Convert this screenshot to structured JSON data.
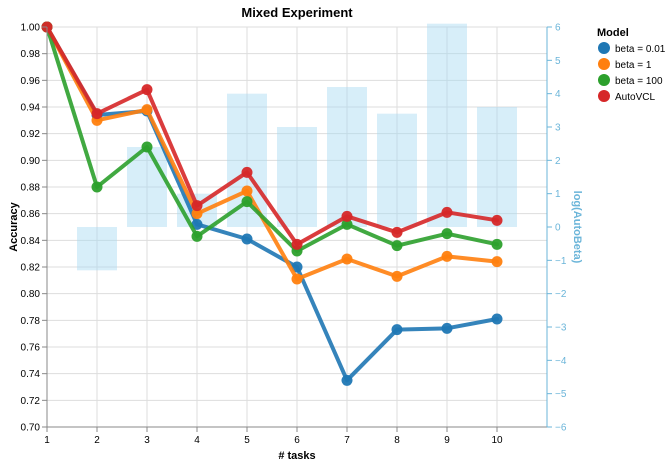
{
  "chart_data": {
    "type": "line",
    "title": "Mixed Experiment",
    "xlabel": "# tasks",
    "ylabel": "Accuracy",
    "y2label": "log(AutoBeta)",
    "x": [
      1,
      2,
      3,
      4,
      5,
      6,
      7,
      8,
      9,
      10
    ],
    "ylim": [
      0.7,
      1.0
    ],
    "y_ticks": [
      "0.70",
      "0.72",
      "0.74",
      "0.76",
      "0.78",
      "0.80",
      "0.82",
      "0.84",
      "0.86",
      "0.88",
      "0.90",
      "0.92",
      "0.94",
      "0.96",
      "0.98",
      "1.00"
    ],
    "y2lim": [
      -6,
      6
    ],
    "y2_ticks": [
      "−6",
      "−5",
      "−4",
      "−3",
      "−2",
      "−1",
      "0",
      "1",
      "2",
      "3",
      "4",
      "5",
      "6"
    ],
    "grid": true,
    "legend": {
      "title": "Model",
      "placement": "top-right",
      "entries": [
        "beta = 0.01",
        "beta = 1",
        "beta = 100",
        "AutoVCL"
      ]
    },
    "series": [
      {
        "name": "beta = 0.01",
        "color": "#1f77b4",
        "values": [
          1.0,
          0.934,
          0.937,
          0.852,
          0.841,
          0.82,
          0.735,
          0.773,
          0.774,
          0.781
        ]
      },
      {
        "name": "beta = 1",
        "color": "#ff7f0e",
        "values": [
          1.0,
          0.93,
          0.938,
          0.86,
          0.877,
          0.811,
          0.826,
          0.813,
          0.828,
          0.824
        ]
      },
      {
        "name": "beta = 100",
        "color": "#2ca02c",
        "values": [
          1.0,
          0.88,
          0.91,
          0.843,
          0.869,
          0.832,
          0.852,
          0.836,
          0.845,
          0.837
        ]
      },
      {
        "name": "AutoVCL",
        "color": "#d62728",
        "values": [
          1.0,
          0.935,
          0.953,
          0.866,
          0.891,
          0.837,
          0.858,
          0.846,
          0.861,
          0.855
        ]
      }
    ],
    "bars": {
      "name": "log(AutoBeta)",
      "color": "#a6d9f1",
      "x": [
        2,
        3,
        4,
        5,
        6,
        7,
        8,
        9,
        10
      ],
      "values": [
        -1.3,
        2.4,
        1.0,
        4.0,
        3.0,
        4.2,
        3.4,
        6.1,
        3.6
      ]
    }
  }
}
